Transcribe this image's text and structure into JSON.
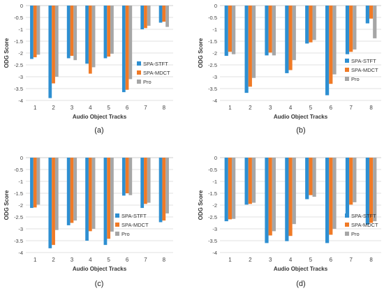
{
  "colors": {
    "SPA-STFT": "#2e8fd1",
    "SPA-MDCT": "#f07a26",
    "Pro": "#a6a6a6",
    "grid": "#d9d9d9",
    "axis": "#bfbfbf"
  },
  "chart_data": [
    {
      "type": "bar",
      "caption": "(a)",
      "xlabel": "Audio Object Tracks",
      "ylabel": "ODG Score",
      "ylim": [
        -4,
        0
      ],
      "yticks": [
        "0",
        "-0.5",
        "-1",
        "-1.5",
        "-2",
        "-2.5",
        "-3",
        "-3.5",
        "-4"
      ],
      "categories": [
        "1",
        "2",
        "3",
        "4",
        "5",
        "6",
        "7",
        "8"
      ],
      "legend_position": "bottom-right",
      "grid": true,
      "series": [
        {
          "name": "SPA-STFT",
          "values": [
            -2.25,
            -3.9,
            -2.22,
            -2.45,
            -2.22,
            -3.65,
            -1.0,
            -0.72
          ]
        },
        {
          "name": "SPA-MDCT",
          "values": [
            -2.18,
            -3.28,
            -2.12,
            -2.87,
            -2.15,
            -3.55,
            -0.95,
            -0.68
          ]
        },
        {
          "name": "Pro",
          "values": [
            -2.07,
            -3.0,
            -2.3,
            -2.6,
            -2.03,
            -3.1,
            -0.85,
            -0.9
          ]
        }
      ]
    },
    {
      "type": "bar",
      "caption": "(b)",
      "xlabel": "Audio Object Tracks",
      "ylabel": "ODG Score",
      "ylim": [
        -4,
        0
      ],
      "yticks": [
        "0",
        "-0.5",
        "-1",
        "-1.5",
        "-2",
        "-2.5",
        "-3",
        "-3.5",
        "-4"
      ],
      "categories": [
        "1",
        "2",
        "3",
        "4",
        "5",
        "6",
        "7",
        "8"
      ],
      "legend_position": "top-right",
      "grid": true,
      "series": [
        {
          "name": "SPA-STFT",
          "values": [
            -2.12,
            -3.68,
            -2.1,
            -2.85,
            -1.6,
            -3.78,
            -2.05,
            -0.75
          ]
        },
        {
          "name": "SPA-MDCT",
          "values": [
            -1.95,
            -3.42,
            -1.98,
            -2.72,
            -1.55,
            -3.3,
            -1.95,
            -0.55
          ]
        },
        {
          "name": "Pro",
          "values": [
            -2.05,
            -3.05,
            -2.1,
            -2.3,
            -1.45,
            -2.9,
            -1.85,
            -1.38
          ]
        }
      ]
    },
    {
      "type": "bar",
      "caption": "(c)",
      "xlabel": "Audio Object Tracks",
      "ylabel": "ODG Score",
      "ylim": [
        -4,
        0
      ],
      "yticks": [
        "0",
        "-0.5",
        "-1",
        "-1.5",
        "-2",
        "-2.5",
        "-3",
        "-3.5",
        "-4"
      ],
      "categories": [
        "1",
        "2",
        "3",
        "4",
        "5",
        "6",
        "7",
        "8"
      ],
      "legend_position": "bottom-center",
      "grid": true,
      "series": [
        {
          "name": "SPA-STFT",
          "values": [
            -2.12,
            -3.82,
            -2.85,
            -3.5,
            -3.68,
            -1.6,
            -2.12,
            -2.72
          ]
        },
        {
          "name": "SPA-MDCT",
          "values": [
            -2.1,
            -3.68,
            -2.75,
            -3.1,
            -3.42,
            -1.5,
            -1.95,
            -2.65
          ]
        },
        {
          "name": "Pro",
          "values": [
            -1.98,
            -3.05,
            -2.65,
            -3.0,
            -3.12,
            -1.58,
            -1.9,
            -2.35
          ]
        }
      ]
    },
    {
      "type": "bar",
      "caption": "(d)",
      "xlabel": "Audio Object Tracks",
      "ylabel": "ODG Score",
      "ylim": [
        -4,
        0
      ],
      "yticks": [
        "0",
        "-0.5",
        "-1",
        "-1.5",
        "-2",
        "-2.5",
        "-3",
        "-3.5",
        "-4"
      ],
      "categories": [
        "1",
        "2",
        "3",
        "4",
        "5",
        "6",
        "7",
        "8"
      ],
      "legend_position": "bottom-right",
      "grid": true,
      "series": [
        {
          "name": "SPA-STFT",
          "values": [
            -2.68,
            -1.98,
            -3.6,
            -3.52,
            -1.75,
            -3.6,
            -2.5,
            -2.82
          ]
        },
        {
          "name": "SPA-MDCT",
          "values": [
            -2.6,
            -1.95,
            -3.28,
            -3.3,
            -1.58,
            -3.25,
            -1.98,
            -2.75
          ]
        },
        {
          "name": "Pro",
          "values": [
            -2.58,
            -1.9,
            -3.1,
            -2.8,
            -1.65,
            -3.0,
            -1.88,
            -2.68
          ]
        }
      ]
    }
  ]
}
